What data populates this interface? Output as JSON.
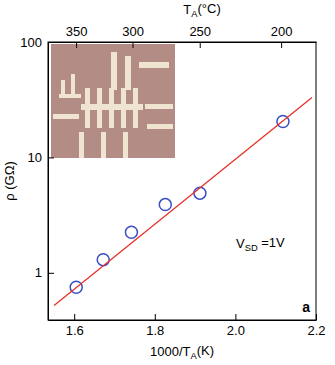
{
  "chart_data": {
    "type": "scatter",
    "x_label": [
      "1000/T",
      "A",
      "(K)"
    ],
    "y_label": "ρ (GΩ)",
    "top_axis": {
      "label": [
        "T",
        "A",
        "(°C)"
      ],
      "ticks": [
        {
          "value": 1.6047,
          "label": "350"
        },
        {
          "value": 1.7447,
          "label": "300"
        },
        {
          "value": 1.9115,
          "label": "250"
        },
        {
          "value": 2.1135,
          "label": "200"
        }
      ]
    },
    "annotation": [
      "V",
      "SD",
      " =1V"
    ],
    "panel_label": "a",
    "log": "y",
    "xlim": [
      1.535,
      2.2
    ],
    "ylim": [
      0.39,
      100
    ],
    "xticks": [
      1.6,
      1.8,
      {
        "value": 2,
        "label": "2.0"
      },
      2.2
    ],
    "yticks": [
      1,
      10,
      100
    ],
    "series": [
      {
        "type": "scatter",
        "marker": "circle-open",
        "color": "#3a4fc4",
        "x": [
          1.605,
          1.672,
          1.742,
          1.826,
          1.912,
          2.118
        ],
        "values": [
          0.75,
          1.3,
          2.25,
          3.9,
          4.9,
          20.5
        ]
      },
      {
        "type": "line",
        "line_style": "solid",
        "color": "#e8302a",
        "x": [
          1.55,
          2.19
        ],
        "values": [
          0.52,
          33
        ]
      }
    ]
  }
}
